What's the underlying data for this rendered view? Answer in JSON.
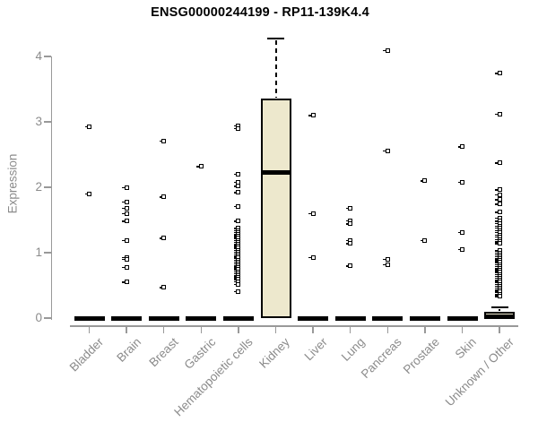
{
  "title": "ENSG00000244199 - RP11-139K4.4",
  "chart_data": {
    "type": "box",
    "title": "ENSG00000244199 - RP11-139K4.4",
    "ylabel": "Expression",
    "xlabel": "",
    "ylim": [
      0,
      4.3
    ],
    "yticks": [
      0,
      1,
      2,
      3,
      4
    ],
    "grid": false,
    "legend": false,
    "colors": {
      "box_fill": "#EDE8CD",
      "box_border": "#000000",
      "axis": "#999999",
      "tick_text": "#8B8B8B",
      "title_text": "#000000",
      "background": "#FFFFFF"
    },
    "categories": [
      "Bladder",
      "Brain",
      "Breast",
      "Gastric",
      "Hematopoietic cells",
      "Kidney",
      "Liver",
      "Lung",
      "Pancreas",
      "Prostate",
      "Skin",
      "Unknown / Other"
    ],
    "boxes": [
      {
        "category": "Bladder",
        "q1": 0,
        "median": 0,
        "q3": 0,
        "whisker_low": 0,
        "whisker_high": 0,
        "outliers": [
          2.93,
          1.9
        ]
      },
      {
        "category": "Brain",
        "q1": 0,
        "median": 0,
        "q3": 0,
        "whisker_low": 0,
        "whisker_high": 0,
        "outliers": [
          2.0,
          1.78,
          1.68,
          1.6,
          1.48,
          1.19,
          0.93,
          0.9,
          0.78,
          0.55
        ]
      },
      {
        "category": "Breast",
        "q1": 0,
        "median": 0,
        "q3": 0,
        "whisker_low": 0,
        "whisker_high": 0,
        "outliers": [
          2.71,
          1.85,
          1.22,
          0.47
        ]
      },
      {
        "category": "Gastric",
        "q1": 0,
        "median": 0,
        "q3": 0,
        "whisker_low": 0,
        "whisker_high": 0,
        "outliers": [
          2.32
        ]
      },
      {
        "category": "Hematopoietic cells",
        "q1": 0,
        "median": 0,
        "q3": 0,
        "whisker_low": 0,
        "whisker_high": 0,
        "outliers": [
          2.94,
          2.9,
          2.2,
          2.08,
          2.02,
          1.92,
          1.71,
          1.48,
          1.37,
          1.34,
          1.31,
          1.28,
          1.25,
          1.22,
          1.19,
          1.16,
          1.13,
          1.1,
          1.07,
          1.04,
          1.01,
          0.98,
          0.95,
          0.92,
          0.89,
          0.86,
          0.83,
          0.8,
          0.77,
          0.74,
          0.71,
          0.68,
          0.65,
          0.62,
          0.59,
          0.56,
          0.52,
          0.41
        ]
      },
      {
        "category": "Kidney",
        "q1": 0,
        "median": 2.22,
        "q3": 3.36,
        "whisker_low": 0,
        "whisker_high": 4.27,
        "outliers": []
      },
      {
        "category": "Liver",
        "q1": 0,
        "median": 0,
        "q3": 0,
        "whisker_low": 0,
        "whisker_high": 0,
        "outliers": [
          3.1,
          1.6,
          0.93
        ]
      },
      {
        "category": "Lung",
        "q1": 0,
        "median": 0,
        "q3": 0,
        "whisker_low": 0,
        "whisker_high": 0,
        "outliers": [
          1.68,
          1.49,
          1.44,
          1.19,
          1.14,
          0.8
        ]
      },
      {
        "category": "Pancreas",
        "q1": 0,
        "median": 0,
        "q3": 0,
        "whisker_low": 0,
        "whisker_high": 0,
        "outliers": [
          4.09,
          2.56,
          0.9,
          0.82
        ]
      },
      {
        "category": "Prostate",
        "q1": 0,
        "median": 0,
        "q3": 0,
        "whisker_low": 0,
        "whisker_high": 0,
        "outliers": [
          2.1,
          1.19
        ]
      },
      {
        "category": "Skin",
        "q1": 0,
        "median": 0,
        "q3": 0,
        "whisker_low": 0,
        "whisker_high": 0,
        "outliers": [
          2.62,
          2.08,
          1.31,
          1.05
        ]
      },
      {
        "category": "Unknown / Other",
        "q1": 0,
        "median": 0.02,
        "q3": 0.1,
        "whisker_low": 0,
        "whisker_high": 0.16,
        "outliers": [
          3.74,
          3.12,
          2.37,
          1.96,
          1.89,
          1.81,
          1.74,
          1.62,
          1.53,
          1.48,
          1.45,
          1.41,
          1.38,
          1.34,
          1.31,
          1.27,
          1.24,
          1.2,
          1.17,
          1.14,
          1.03,
          1.0,
          0.97,
          0.94,
          0.91,
          0.88,
          0.85,
          0.82,
          0.79,
          0.76,
          0.73,
          0.7,
          0.67,
          0.64,
          0.61,
          0.58,
          0.55,
          0.52,
          0.49,
          0.46,
          0.43,
          0.4,
          0.36,
          0.33
        ]
      }
    ]
  }
}
